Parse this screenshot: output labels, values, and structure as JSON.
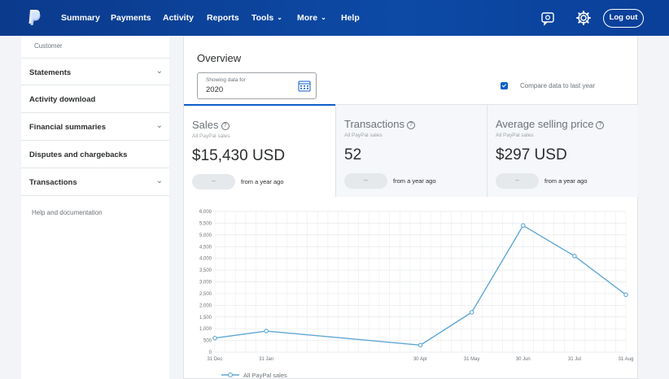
{
  "topnav": {
    "logo": "paypal-logo",
    "items": [
      {
        "label": "Summary"
      },
      {
        "label": "Payments"
      },
      {
        "label": "Activity"
      },
      {
        "label": "Reports"
      },
      {
        "label": "Tools",
        "has_caret": true
      },
      {
        "label": "More",
        "has_caret": true
      },
      {
        "label": "Help"
      }
    ],
    "icons": [
      "message-center-icon",
      "gear-icon"
    ],
    "logout_label": "Log out",
    "colors": {
      "bar": "#0c4aa6",
      "text": "#ffffff"
    }
  },
  "sidebar": {
    "customer_label": "Customer",
    "items": [
      {
        "label": "Statements",
        "expandable": true
      },
      {
        "label": "Activity download",
        "expandable": false
      },
      {
        "label": "Financial summaries",
        "expandable": true
      },
      {
        "label": "Disputes and chargebacks",
        "expandable": false
      },
      {
        "label": "Transactions",
        "expandable": true
      }
    ],
    "help_label": "Help and documentation"
  },
  "overview": {
    "title": "Overview",
    "date_filter": {
      "caption": "Showing data for",
      "value": "2020"
    },
    "compare": {
      "label": "Compare data to last year",
      "checked": true
    }
  },
  "metrics": [
    {
      "title": "Sales",
      "subtitle": "All PayPal sales",
      "value": "$15,430 USD",
      "pill": "--",
      "change_label": "from a year ago",
      "active": true
    },
    {
      "title": "Transactions",
      "subtitle": "All PayPal sales",
      "value": "52",
      "pill": "--",
      "change_label": "from a year ago",
      "active": false
    },
    {
      "title": "Average selling price",
      "subtitle": "All PayPal sales",
      "value": "$297 USD",
      "pill": "--",
      "change_label": "from a year ago",
      "active": false
    }
  ],
  "chart_data": {
    "type": "line",
    "categories": [
      "31 Dec",
      "31 Jan",
      "30 Apr",
      "31 May",
      "30 Jun",
      "31 Jul",
      "31 Aug"
    ],
    "y_tick_labels": [
      "0",
      "500",
      "1,000",
      "1,500",
      "2,000",
      "2,500",
      "3,000",
      "3,500",
      "4,000",
      "4,500",
      "5,000",
      "5,500",
      "6,000"
    ],
    "ylim": [
      0,
      6000
    ],
    "series": [
      {
        "name": "All PayPal sales",
        "values": [
          600,
          900,
          300,
          1700,
          5400,
          4100,
          2450
        ],
        "color": "#5fa7d4"
      }
    ],
    "grid": true,
    "legend_position": "bottom-left"
  }
}
